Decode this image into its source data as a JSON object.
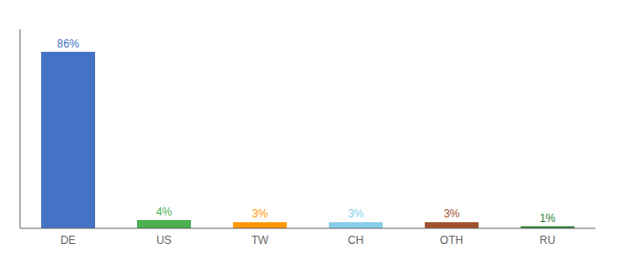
{
  "chart_data": {
    "type": "bar",
    "categories": [
      "DE",
      "US",
      "TW",
      "CH",
      "OTH",
      "RU"
    ],
    "values": [
      86,
      4,
      3,
      3,
      3,
      1
    ],
    "value_labels": [
      "86%",
      "4%",
      "3%",
      "3%",
      "3%",
      "1%"
    ],
    "colors": [
      "#4472C4",
      "#4CAF50",
      "#FF9800",
      "#87CEEB",
      "#A0522D",
      "#2E7D32"
    ],
    "ylim": [
      0,
      97
    ],
    "data_labels": true,
    "tick_labels": "x",
    "grid": false
  }
}
